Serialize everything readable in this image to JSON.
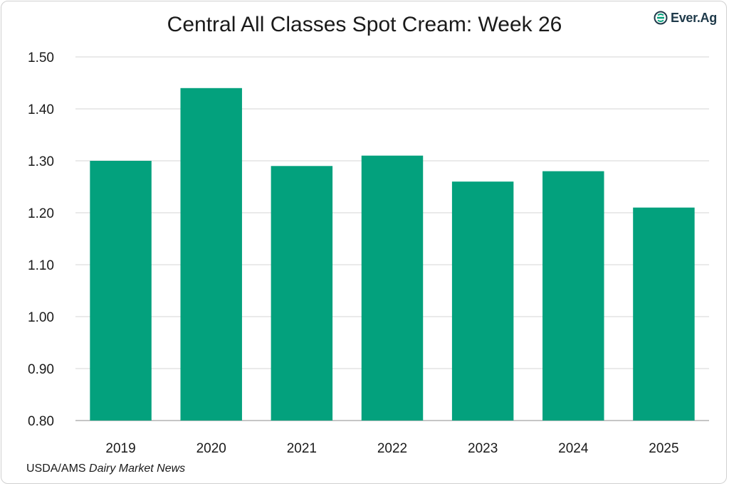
{
  "chart_data": {
    "type": "bar",
    "title": "Central All Classes Spot Cream: Week 26",
    "categories": [
      "2019",
      "2020",
      "2021",
      "2022",
      "2023",
      "2024",
      "2025"
    ],
    "values": [
      1.3,
      1.44,
      1.29,
      1.31,
      1.26,
      1.28,
      1.21
    ],
    "ylim": [
      0.8,
      1.5
    ],
    "yticks": [
      "0.80",
      "0.90",
      "1.00",
      "1.10",
      "1.20",
      "1.30",
      "1.40",
      "1.50"
    ],
    "grid": true,
    "bar_color": "#03a17d"
  },
  "logo": {
    "text": "Ever.Ag",
    "icon": "everag-logo-icon"
  },
  "source": {
    "prefix": "USDA/AMS ",
    "italic": "Dairy Market News"
  }
}
